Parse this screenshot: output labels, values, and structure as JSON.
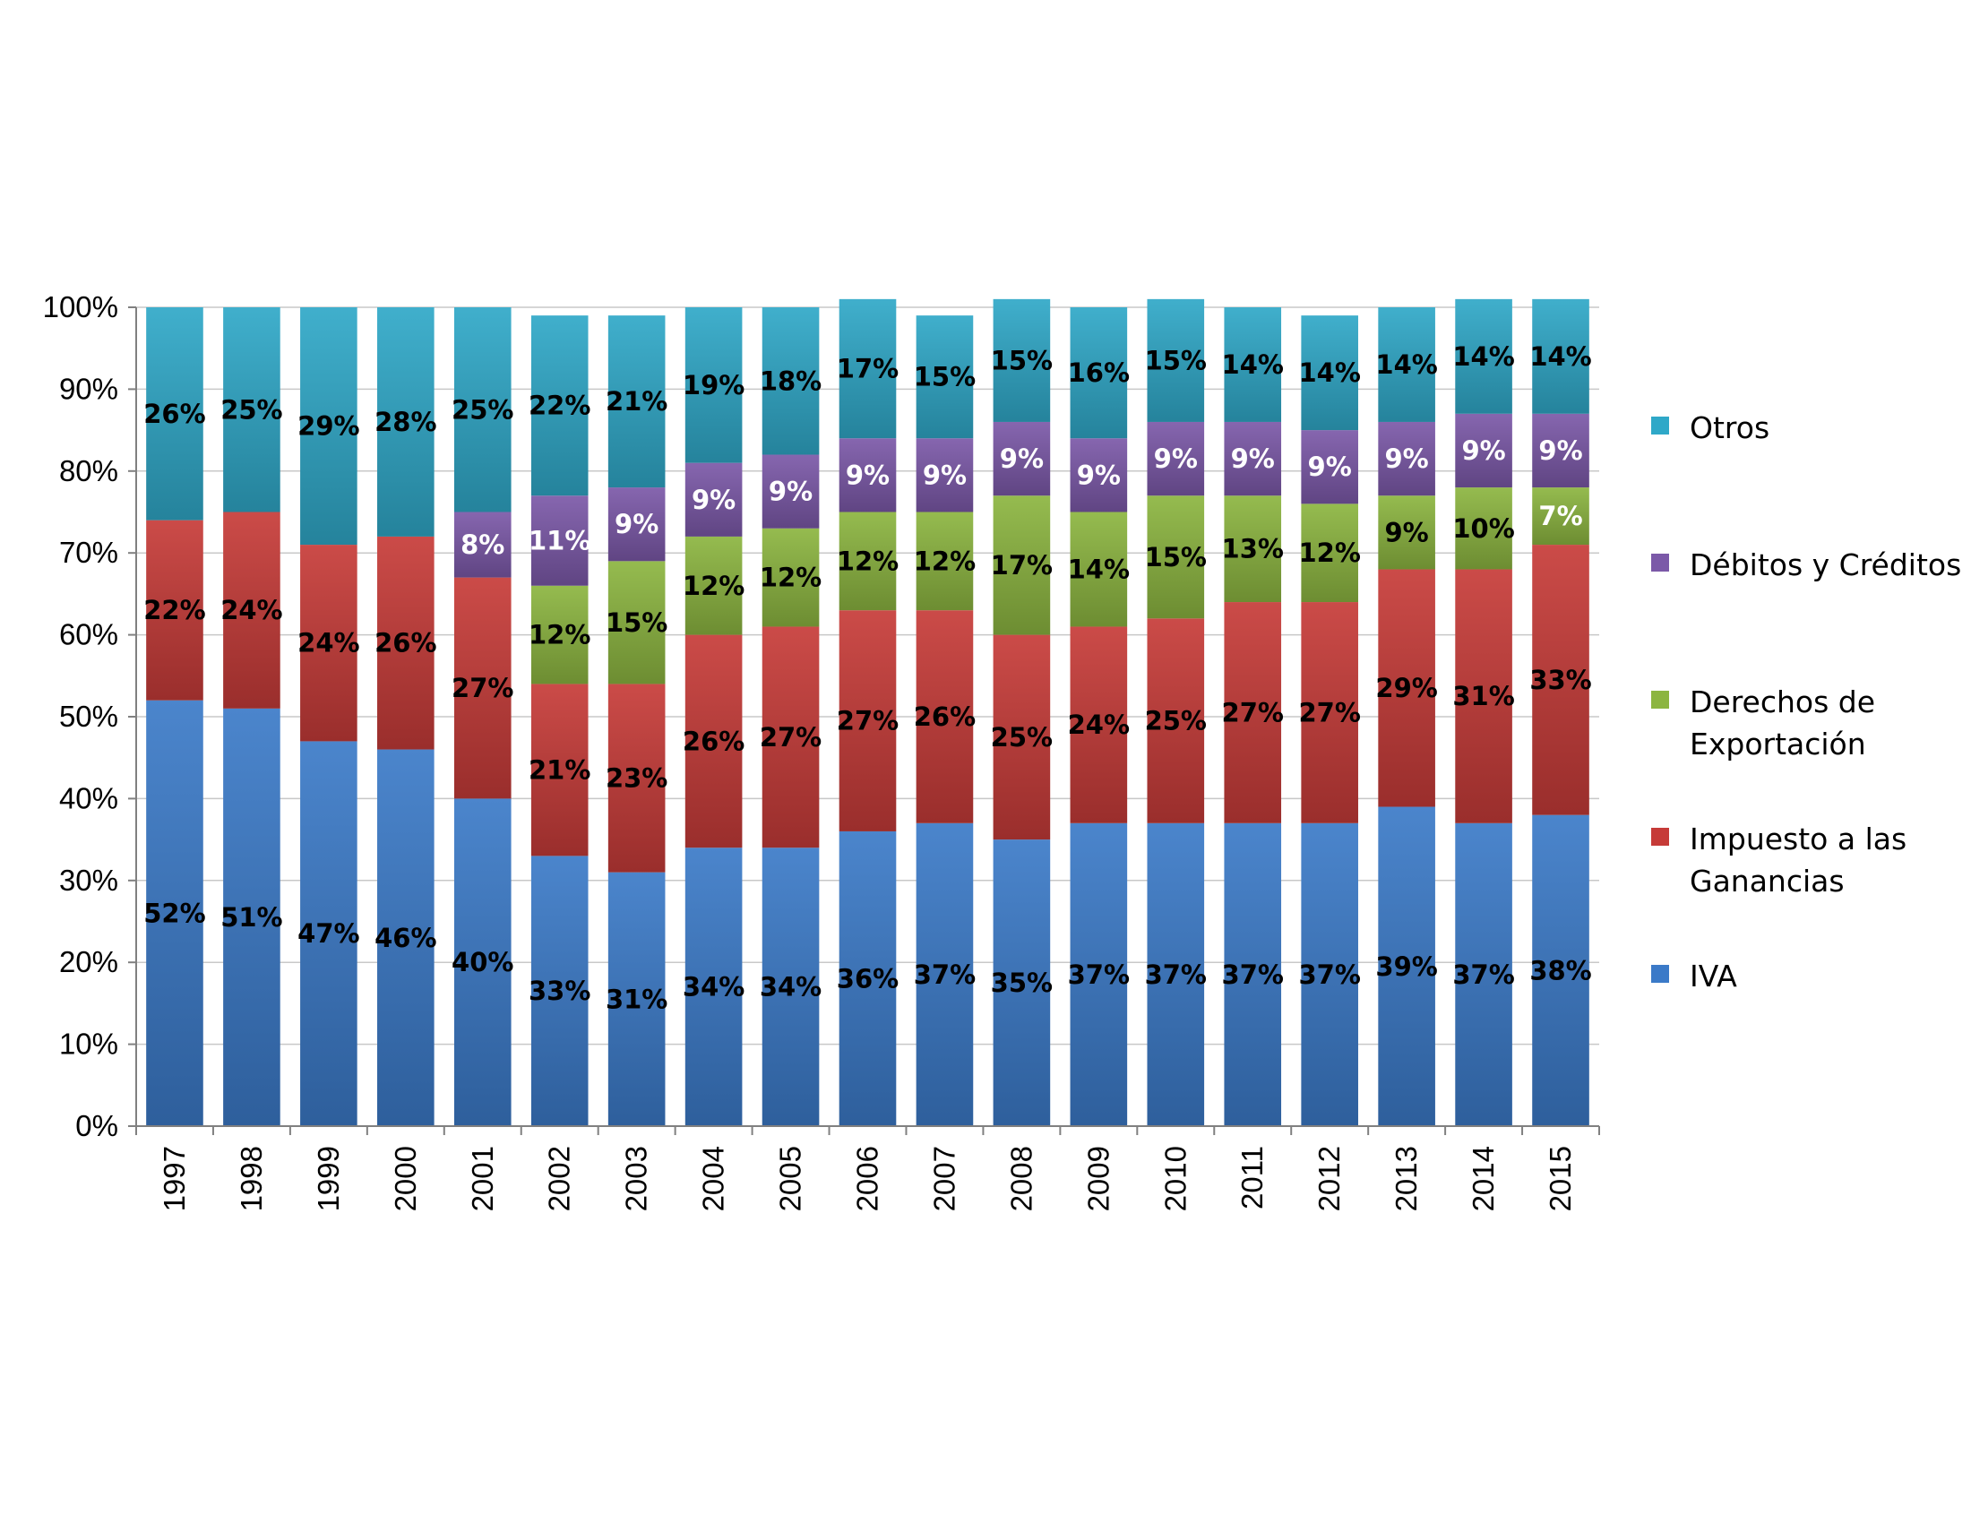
{
  "chart_data": {
    "type": "bar",
    "stacked": true,
    "title": "",
    "xlabel": "",
    "ylabel": "",
    "ylim": [
      0,
      100
    ],
    "y_ticks": [
      "0%",
      "10%",
      "20%",
      "30%",
      "40%",
      "50%",
      "60%",
      "70%",
      "80%",
      "90%",
      "100%"
    ],
    "grid": true,
    "legend_position": "right",
    "categories": [
      "1997",
      "1998",
      "1999",
      "2000",
      "2001",
      "2002",
      "2003",
      "2004",
      "2005",
      "2006",
      "2007",
      "2008",
      "2009",
      "2010",
      "2011",
      "2012",
      "2013",
      "2014",
      "2015"
    ],
    "series": [
      {
        "name": "IVA",
        "color": "#3b7ac8",
        "values": [
          52,
          51,
          47,
          46,
          40,
          33,
          31,
          34,
          34,
          36,
          37,
          35,
          37,
          37,
          37,
          37,
          39,
          37,
          38
        ],
        "labels": [
          "52%",
          "51%",
          "47%",
          "46%",
          "40%",
          "33%",
          "31%",
          "34%",
          "34%",
          "36%",
          "37%",
          "35%",
          "37%",
          "37%",
          "37%",
          "37%",
          "39%",
          "37%",
          "38%"
        ]
      },
      {
        "name": "Impuesto a las Ganancias",
        "color": "#c63b38",
        "values": [
          22,
          24,
          24,
          26,
          27,
          21,
          23,
          26,
          27,
          27,
          26,
          25,
          24,
          25,
          27,
          27,
          29,
          31,
          33
        ],
        "labels": [
          "22%",
          "24%",
          "24%",
          "26%",
          "27%",
          "21%",
          "23%",
          "26%",
          "27%",
          "27%",
          "26%",
          "25%",
          "24%",
          "25%",
          "27%",
          "27%",
          "29%",
          "31%",
          "33%"
        ]
      },
      {
        "name": "Derechos de Exportación",
        "color": "#8cb540",
        "values": [
          0,
          0,
          0,
          0,
          0,
          12,
          15,
          12,
          12,
          12,
          12,
          17,
          14,
          15,
          13,
          12,
          9,
          10,
          7
        ],
        "labels": [
          "",
          "",
          "",
          "",
          "",
          "12%",
          "15%",
          "12%",
          "12%",
          "12%",
          "12%",
          "17%",
          "14%",
          "15%",
          "13%",
          "12%",
          "9%",
          "10%",
          "7%"
        ]
      },
      {
        "name": "Débitos y Créditos",
        "color": "#7b59a8",
        "values": [
          0,
          0,
          0,
          0,
          8,
          11,
          9,
          9,
          9,
          9,
          9,
          9,
          9,
          9,
          9,
          9,
          9,
          9,
          9
        ],
        "labels": [
          "",
          "",
          "",
          "",
          "8%",
          "11%",
          "9%",
          "9%",
          "9%",
          "9%",
          "9%",
          "9%",
          "9%",
          "9%",
          "9%",
          "9%",
          "9%",
          "9%",
          "9%"
        ]
      },
      {
        "name": "Otros",
        "color": "#2fa8c8",
        "values": [
          26,
          25,
          29,
          28,
          25,
          22,
          21,
          19,
          18,
          17,
          15,
          15,
          16,
          15,
          14,
          14,
          14,
          14,
          14
        ],
        "labels": [
          "26%",
          "25%",
          "29%",
          "28%",
          "25%",
          "22%",
          "21%",
          "19%",
          "18%",
          "17%",
          "15%",
          "15%",
          "16%",
          "15%",
          "14%",
          "14%",
          "14%",
          "14%",
          "14%"
        ]
      }
    ],
    "legend": [
      {
        "series": "Otros",
        "lines": [
          "Otros"
        ]
      },
      {
        "series": "Débitos y Créditos",
        "lines": [
          "Débitos y Créditos"
        ]
      },
      {
        "series": "Derechos de Exportación",
        "lines": [
          "Derechos de",
          "Exportación"
        ]
      },
      {
        "series": "Impuesto a las Ganancias",
        "lines": [
          "Impuesto a las",
          "Ganancias"
        ]
      },
      {
        "series": "IVA",
        "lines": [
          "IVA"
        ]
      }
    ]
  }
}
